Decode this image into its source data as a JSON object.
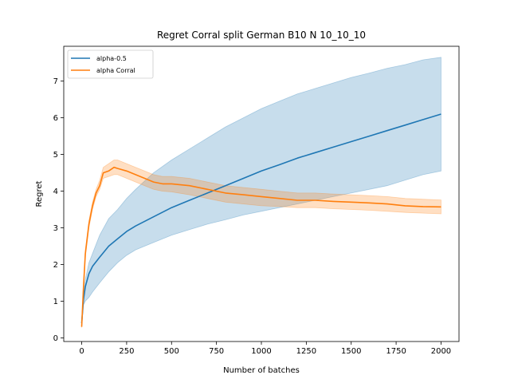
{
  "chart_data": {
    "type": "line",
    "title": "Regret Corral split German B10 N 10_10_10",
    "xlabel": "Number of batches",
    "ylabel": "Regret",
    "xlim": [
      -100,
      2100
    ],
    "ylim": [
      -0.1,
      7.95
    ],
    "xticks": [
      0,
      250,
      500,
      750,
      1000,
      1250,
      1500,
      1750,
      2000
    ],
    "yticks": [
      0,
      1,
      2,
      3,
      4,
      5,
      6,
      7
    ],
    "grid": false,
    "legend": "top-left",
    "series": [
      {
        "name": "alpha-0.5",
        "color": "#1f77b4",
        "x": [
          0,
          10,
          20,
          40,
          60,
          100,
          150,
          200,
          250,
          300,
          400,
          500,
          600,
          700,
          800,
          900,
          1000,
          1100,
          1200,
          1300,
          1400,
          1500,
          1600,
          1700,
          1800,
          1900,
          2000
        ],
        "y": [
          0.4,
          1.05,
          1.4,
          1.75,
          1.95,
          2.2,
          2.5,
          2.7,
          2.9,
          3.05,
          3.3,
          3.55,
          3.75,
          3.95,
          4.15,
          4.35,
          4.55,
          4.72,
          4.9,
          5.05,
          5.2,
          5.35,
          5.5,
          5.65,
          5.8,
          5.95,
          6.1
        ],
        "lower": [
          0.35,
          0.9,
          1.0,
          1.1,
          1.25,
          1.5,
          1.8,
          2.05,
          2.25,
          2.4,
          2.6,
          2.8,
          2.95,
          3.1,
          3.22,
          3.35,
          3.45,
          3.55,
          3.65,
          3.75,
          3.85,
          3.95,
          4.05,
          4.15,
          4.3,
          4.45,
          4.55
        ],
        "upper": [
          0.45,
          1.2,
          1.6,
          2.05,
          2.3,
          2.8,
          3.25,
          3.5,
          3.8,
          4.05,
          4.5,
          4.85,
          5.15,
          5.45,
          5.75,
          6.0,
          6.25,
          6.45,
          6.65,
          6.8,
          6.95,
          7.1,
          7.22,
          7.35,
          7.45,
          7.58,
          7.65
        ]
      },
      {
        "name": "alpha Corral",
        "color": "#ff7f0e",
        "x": [
          0,
          10,
          20,
          40,
          60,
          80,
          100,
          120,
          150,
          180,
          200,
          250,
          300,
          350,
          400,
          450,
          500,
          600,
          700,
          800,
          900,
          1000,
          1100,
          1200,
          1300,
          1400,
          1500,
          1600,
          1700,
          1800,
          1900,
          2000
        ],
        "y": [
          0.3,
          1.4,
          2.3,
          3.1,
          3.6,
          3.95,
          4.15,
          4.5,
          4.55,
          4.65,
          4.62,
          4.55,
          4.45,
          4.35,
          4.25,
          4.2,
          4.2,
          4.15,
          4.05,
          3.95,
          3.9,
          3.85,
          3.8,
          3.75,
          3.75,
          3.72,
          3.7,
          3.68,
          3.65,
          3.6,
          3.58,
          3.57
        ],
        "lower": [
          0.28,
          1.3,
          2.2,
          3.0,
          3.5,
          3.85,
          4.05,
          4.35,
          4.4,
          4.45,
          4.45,
          4.35,
          4.25,
          4.15,
          4.05,
          4.0,
          3.98,
          3.9,
          3.8,
          3.7,
          3.65,
          3.6,
          3.58,
          3.55,
          3.55,
          3.52,
          3.5,
          3.48,
          3.45,
          3.42,
          3.4,
          3.38
        ],
        "upper": [
          0.32,
          1.5,
          2.4,
          3.2,
          3.7,
          4.05,
          4.3,
          4.65,
          4.75,
          4.85,
          4.85,
          4.75,
          4.65,
          4.55,
          4.45,
          4.4,
          4.4,
          4.35,
          4.25,
          4.15,
          4.1,
          4.05,
          4.0,
          3.95,
          3.95,
          3.92,
          3.9,
          3.88,
          3.85,
          3.8,
          3.78,
          3.76
        ]
      }
    ]
  }
}
